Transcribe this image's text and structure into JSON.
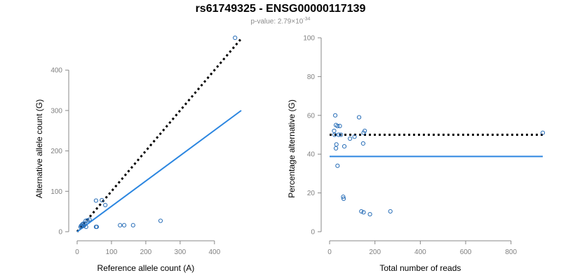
{
  "header": {
    "title": "rs61749325 - ENSG00000117139",
    "pvalue_prefix": "p-value: 2.79×10",
    "pvalue_exp": "-34"
  },
  "chart_data": [
    {
      "type": "scatter",
      "xlabel": "Reference allele count (A)",
      "ylabel": "Alternative allele count (G)",
      "xlim": [
        0,
        480
      ],
      "ylim": [
        0,
        480
      ],
      "x_ticks": [
        0,
        100,
        200,
        300,
        400
      ],
      "y_ticks": [
        0,
        100,
        200,
        300,
        400
      ],
      "points": [
        [
          460,
          480
        ],
        [
          55,
          77
        ],
        [
          72,
          78
        ],
        [
          82,
          66
        ],
        [
          36,
          30
        ],
        [
          30,
          28
        ],
        [
          25,
          27
        ],
        [
          22,
          20
        ],
        [
          18,
          20
        ],
        [
          15,
          18
        ],
        [
          12,
          15
        ],
        [
          10,
          12
        ],
        [
          14,
          13
        ],
        [
          20,
          15
        ],
        [
          26,
          12
        ],
        [
          55,
          12
        ],
        [
          57,
          12
        ],
        [
          125,
          16
        ],
        [
          137,
          16
        ],
        [
          163,
          16
        ],
        [
          243,
          27
        ]
      ],
      "reference_line": {
        "style": "dotted",
        "color": "#000000",
        "from": [
          0,
          0
        ],
        "to": [
          478,
          478
        ]
      },
      "fit_line": {
        "style": "solid",
        "color": "#2b86e0",
        "from": [
          0,
          0
        ],
        "to": [
          478,
          300
        ]
      }
    },
    {
      "type": "scatter",
      "xlabel": "Total number of reads",
      "ylabel": "Percentage alternative (G)",
      "xlim": [
        0,
        940
      ],
      "ylim": [
        0,
        100
      ],
      "x_ticks": [
        0,
        200,
        400,
        600,
        800
      ],
      "y_ticks": [
        0,
        20,
        40,
        60,
        80,
        100
      ],
      "points": [
        [
          940,
          51
        ],
        [
          25,
          60
        ],
        [
          28,
          55
        ],
        [
          35,
          54.5
        ],
        [
          45,
          54.5
        ],
        [
          20,
          52
        ],
        [
          22,
          50
        ],
        [
          40,
          50
        ],
        [
          50,
          50
        ],
        [
          150,
          51
        ],
        [
          155,
          52
        ],
        [
          130,
          59
        ],
        [
          90,
          48
        ],
        [
          110,
          49
        ],
        [
          30,
          45
        ],
        [
          28,
          43
        ],
        [
          65,
          44
        ],
        [
          148,
          45.5
        ],
        [
          35,
          34
        ],
        [
          60,
          18
        ],
        [
          62,
          17
        ],
        [
          140,
          10.5
        ],
        [
          150,
          10
        ],
        [
          178,
          9
        ],
        [
          268,
          10.5
        ]
      ],
      "reference_line": {
        "style": "dotted",
        "color": "#000000",
        "y": 50
      },
      "fit_line": {
        "style": "solid",
        "color": "#2b86e0",
        "y": 38.8
      }
    }
  ]
}
